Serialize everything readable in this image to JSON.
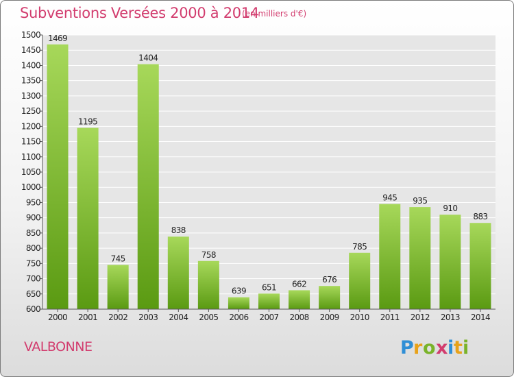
{
  "header": {
    "title": "Subventions Versées 2000 à 2014",
    "subtitle": "(en milliers d'€)"
  },
  "footer": {
    "town": "VALBONNE",
    "logo_text": "Proxiti"
  },
  "colors": {
    "title": "#d23c6e",
    "bar_top": "#a7d85a",
    "bar_bottom": "#5a9a12",
    "plot_bg": "#e6e6e6",
    "grid": "#ffffff"
  },
  "chart_data": {
    "type": "bar",
    "title": "Subventions Versées 2000 à 2014",
    "subtitle": "(en milliers d'€)",
    "categories": [
      "2000",
      "2001",
      "2002",
      "2003",
      "2004",
      "2005",
      "2006",
      "2007",
      "2008",
      "2009",
      "2010",
      "2011",
      "2012",
      "2013",
      "2014"
    ],
    "values": [
      1469,
      1195,
      745,
      1404,
      838,
      758,
      639,
      651,
      662,
      676,
      785,
      945,
      935,
      910,
      883
    ],
    "ylim": [
      600,
      1500
    ],
    "yticks": [
      600,
      650,
      700,
      750,
      800,
      850,
      900,
      950,
      1000,
      1050,
      1100,
      1150,
      1200,
      1250,
      1300,
      1350,
      1400,
      1450,
      1500
    ],
    "xlabel": "",
    "ylabel": "",
    "grid": true,
    "legend": "none"
  }
}
